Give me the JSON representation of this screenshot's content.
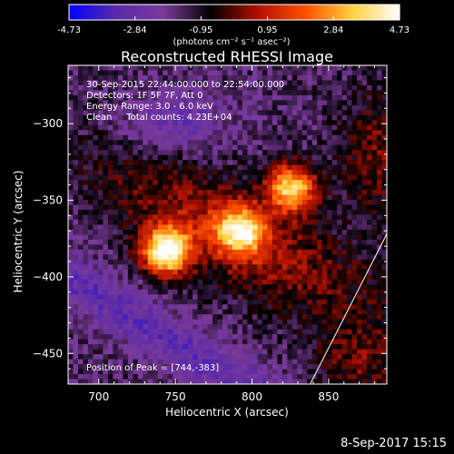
{
  "colorbar": {
    "tick_labels": [
      "-4.73",
      "-2.84",
      "-0.95",
      "0.95",
      "2.84",
      "4.73"
    ],
    "tick_values": [
      -4.73,
      -2.84,
      -0.95,
      0.95,
      2.84,
      4.73
    ],
    "range": [
      -4.73,
      4.73
    ],
    "units_label": "(photons cm⁻² s⁻¹ asec⁻²)",
    "colors": [
      "#0000ff",
      "#5a2aa8",
      "#7a3a9a",
      "#000000",
      "#b01000",
      "#ff5000",
      "#ffd040",
      "#ffffff"
    ]
  },
  "chart_data": {
    "type": "heatmap",
    "title": "Reconstructed RHESSI Image",
    "xlabel": "Heliocentric X (arcsec)",
    "ylabel": "Heliocentric Y (arcsec)",
    "xlim": [
      680,
      888
    ],
    "ylim": [
      -470,
      -262
    ],
    "x_ticks": [
      700,
      750,
      800,
      850
    ],
    "y_ticks": [
      -300,
      -350,
      -400,
      -450
    ],
    "x_tick_labels": [
      "700",
      "750",
      "800",
      "850"
    ],
    "y_tick_labels": [
      "−300",
      "−350",
      "−400",
      "−450"
    ],
    "sources": [
      {
        "x": 744,
        "y": -383,
        "peak": 4.7
      },
      {
        "x": 792,
        "y": -370,
        "peak": 3.0
      },
      {
        "x": 826,
        "y": -342,
        "peak": 3.6
      }
    ],
    "limb_curve": [
      [
        838,
        -470
      ],
      [
        888,
        -372
      ]
    ],
    "annotations": [
      "30-Sep-2015 22:44:00.000 to 22:54:00.000",
      "Detectors: 1F 5F 7F, Att 0",
      "Energy Range: 3.0 - 6.0 keV",
      "Clean     Total counts: 4.23E+04"
    ],
    "peak_text": "Position of Peak = [744,-383]"
  },
  "footer": {
    "timestamp": "8-Sep-2017 15:15"
  }
}
